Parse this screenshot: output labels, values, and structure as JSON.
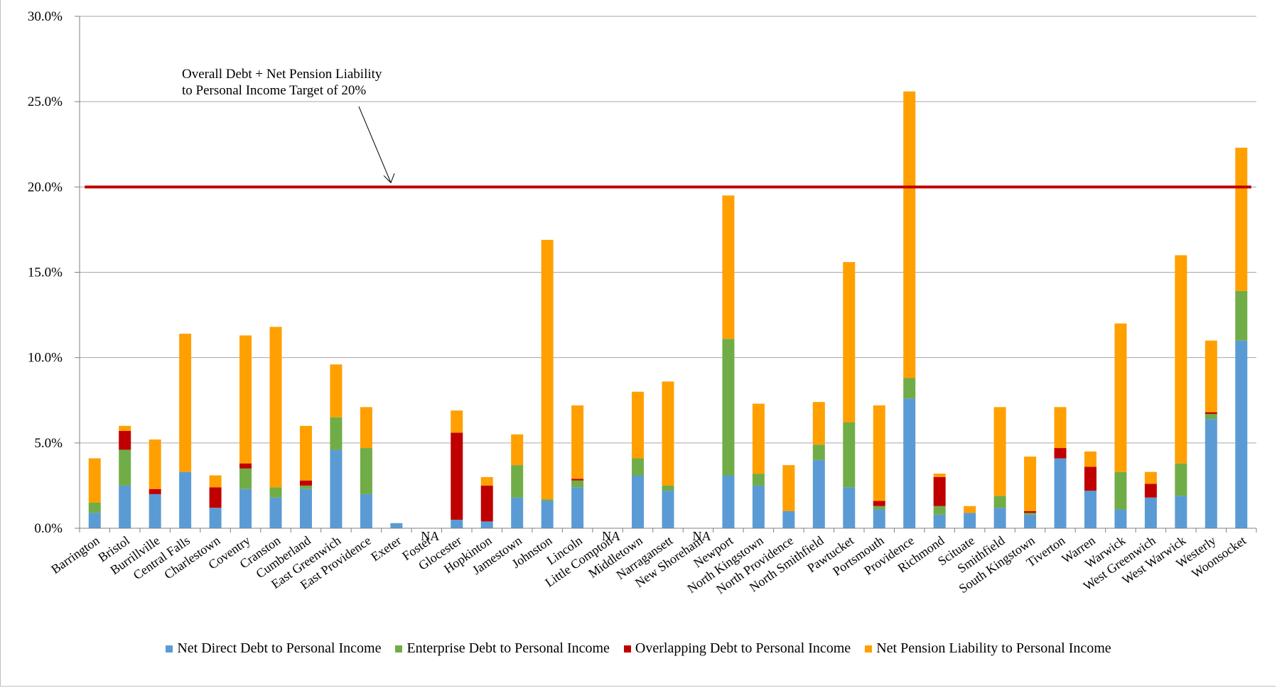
{
  "chart_data": {
    "type": "bar",
    "stacked": true,
    "title": "",
    "xlabel": "",
    "ylabel": "",
    "ylim": [
      0,
      30
    ],
    "y_tick_labels": [
      "0.0%",
      "5.0%",
      "10.0%",
      "15.0%",
      "20.0%",
      "25.0%",
      "30.0%"
    ],
    "grid": "horizontal",
    "legend_position": "bottom",
    "categories": [
      "Barrington",
      "Bristol",
      "Burrillville",
      "Central Falls",
      "Charlestown",
      "Coventry",
      "Cranston",
      "Cumberland",
      "East Greenwich",
      "East Providence",
      "Exeter",
      "Foster",
      "Glocester",
      "Hopkinton",
      "Jamestown",
      "Johnston",
      "Lincoln",
      "Little Compton",
      "Middletown",
      "Narragansett",
      "New Shoreham",
      "Newport",
      "North Kingstown",
      "North Providence",
      "North Smithfield",
      "Pawtucket",
      "Portsmouth",
      "Providence",
      "Richmond",
      "Scituate",
      "Smithfield",
      "South Kingstown",
      "Tiverton",
      "Warren",
      "Warwick",
      "West Greenwich",
      "West Warwick",
      "Westerly",
      "Woonsocket"
    ],
    "series": [
      {
        "name": "Net Direct Debt to Personal Income",
        "color": "#5b9bd5",
        "values": [
          0.9,
          2.5,
          2.0,
          3.3,
          1.2,
          2.3,
          1.8,
          2.3,
          4.6,
          2.0,
          0.3,
          0,
          0.5,
          0.4,
          1.8,
          1.6,
          2.4,
          0,
          3.1,
          2.2,
          0,
          3.1,
          2.5,
          1.0,
          4.0,
          2.4,
          1.1,
          7.6,
          0.8,
          0.9,
          1.2,
          0.8,
          4.1,
          2.2,
          1.1,
          1.8,
          1.9,
          6.4,
          11.0
        ]
      },
      {
        "name": "Enterprise Debt to Personal Income",
        "color": "#70ad47",
        "values": [
          0.6,
          2.1,
          0,
          0,
          0,
          1.2,
          0.6,
          0.2,
          1.9,
          2.7,
          0,
          0,
          0,
          0,
          1.9,
          0.1,
          0.4,
          0,
          1.0,
          0.3,
          0,
          8.0,
          0.7,
          0,
          0.9,
          3.8,
          0.2,
          1.2,
          0.5,
          0,
          0.7,
          0.1,
          0,
          0,
          2.2,
          0,
          1.9,
          0.3,
          2.9
        ]
      },
      {
        "name": "Overlapping Debt to Personal Income",
        "color": "#c00000",
        "values": [
          0,
          1.1,
          0.3,
          0,
          1.2,
          0.3,
          0,
          0.3,
          0,
          0,
          0,
          0,
          5.1,
          2.1,
          0,
          0,
          0.1,
          0,
          0,
          0,
          0,
          0,
          0,
          0,
          0,
          0,
          0.3,
          0,
          1.7,
          0,
          0,
          0.1,
          0.6,
          1.4,
          0,
          0.8,
          0,
          0.1,
          0
        ]
      },
      {
        "name": "Net Pension Liability to Personal Income",
        "color": "#ffa000",
        "values": [
          2.6,
          0.3,
          2.9,
          8.1,
          0.7,
          7.5,
          9.4,
          3.2,
          3.1,
          2.4,
          0,
          0,
          1.3,
          0.5,
          1.8,
          15.2,
          4.3,
          0,
          3.9,
          6.1,
          0,
          8.4,
          4.1,
          2.7,
          2.5,
          9.4,
          5.6,
          16.8,
          0.2,
          0.4,
          5.2,
          3.2,
          2.4,
          0.9,
          8.7,
          0.7,
          12.2,
          4.2,
          8.4
        ]
      }
    ],
    "na_labels": [
      {
        "category": "Foster",
        "text": "NA"
      },
      {
        "category": "Little Compton",
        "text": "NA"
      },
      {
        "category": "New Shoreham",
        "text": "NA"
      }
    ],
    "target_line": {
      "value": 20,
      "color": "#c00000"
    },
    "annotation": {
      "lines": [
        "Overall Debt + Net Pension Liability",
        "to Personal Income Target of 20%"
      ]
    }
  }
}
